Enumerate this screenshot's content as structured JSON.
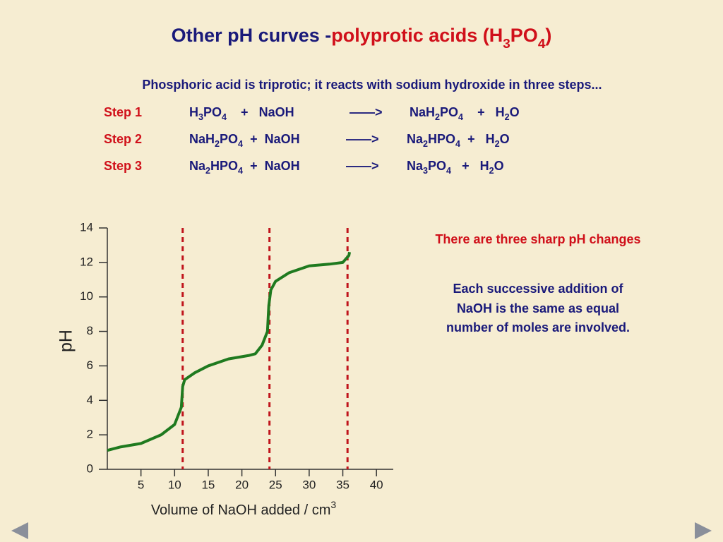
{
  "title": [
    "Other pH curves - ",
    "polyprotic acids (H3PO4)"
  ],
  "intro": "Phosphoric acid is triprotic; it reacts with sodium hydroxide in three steps...",
  "steps": [
    {
      "label": "Step 1",
      "reactants": "H3PO4    +   NaOH",
      "arrow": "——>",
      "products": "NaH2PO4    +   H2O"
    },
    {
      "label": "Step 2",
      "reactants": "NaH2PO4  +  NaOH",
      "arrow": "——>",
      "products": "Na2HPO4  +   H2O"
    },
    {
      "label": "Step 3",
      "reactants": "Na2HPO4  +  NaOH",
      "arrow": "——>",
      "products": "Na3PO4   +   H2O"
    }
  ],
  "notes": [
    "There are three sharp pH changes",
    [
      "Each successive addition of",
      "NaOH is the same as equal",
      "number of moles are involved."
    ]
  ],
  "chart_data": {
    "type": "line",
    "x_label": "Volume of NaOH added / cm3",
    "y_label": "pH",
    "x": [
      0,
      2,
      5,
      8,
      10,
      11,
      11.2,
      11.5,
      13,
      15,
      18,
      21,
      22,
      23,
      23.8,
      24,
      24.3,
      25,
      27,
      30,
      33,
      35,
      35.9,
      36
    ],
    "series": [
      {
        "color": "#1f7a1f",
        "values": [
          1.1,
          1.3,
          1.5,
          2.0,
          2.6,
          3.6,
          4.8,
          5.2,
          5.6,
          6.0,
          6.4,
          6.6,
          6.7,
          7.2,
          8.0,
          9.5,
          10.4,
          10.9,
          11.4,
          11.8,
          11.9,
          12.0,
          12.4,
          12.6
        ]
      }
    ],
    "equivalence_x": [
      11.2,
      24.1,
      35.7
    ],
    "equivalence_color": "#c0141c",
    "xlim": [
      0,
      42.5
    ],
    "ylim": [
      0,
      14
    ],
    "xticks": [
      5,
      10,
      15,
      20,
      25,
      30,
      35,
      40
    ],
    "yticks": [
      0,
      2,
      4,
      6,
      8,
      10,
      12,
      14
    ]
  }
}
